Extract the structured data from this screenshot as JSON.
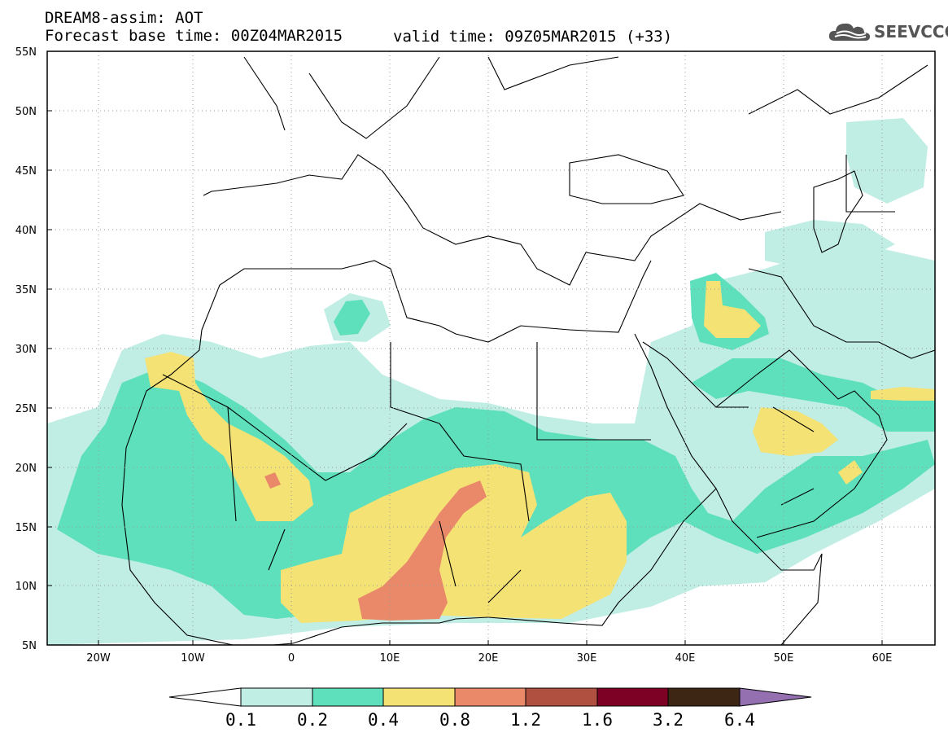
{
  "header": {
    "line1": "DREAM8-assim: AOT",
    "line2": "Forecast base time: 00Z04MAR2015",
    "valid": "valid time: 09Z05MAR2015 (+33)",
    "logo_text": "SEEVCCC"
  },
  "map": {
    "lon_range": [
      -25,
      65
    ],
    "lat_range": [
      5,
      55
    ],
    "lat_ticks": [
      "55N",
      "50N",
      "45N",
      "40N",
      "35N",
      "30N",
      "25N",
      "20N",
      "15N",
      "10N",
      "5N"
    ],
    "lon_ticks": [
      "20W",
      "10W",
      "0",
      "10E",
      "20E",
      "30E",
      "40E",
      "50E",
      "60E"
    ]
  },
  "colorbar": {
    "labels": [
      "0.1",
      "0.2",
      "0.4",
      "0.8",
      "1.2",
      "1.6",
      "3.2",
      "6.4"
    ],
    "colors": [
      "#ffffff",
      "#c0ede4",
      "#5ee0bc",
      "#f4e274",
      "#e9896a",
      "#b05040",
      "#7d0025",
      "#3d2614",
      "#9470b0"
    ]
  }
}
